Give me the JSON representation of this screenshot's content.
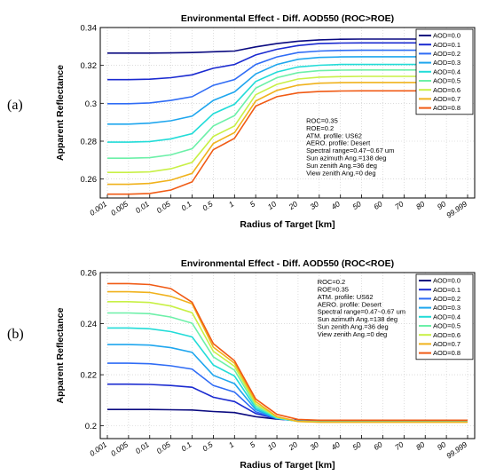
{
  "panel_labels": [
    "(a)",
    "(b)"
  ],
  "chart_data": [
    {
      "type": "line",
      "title": "Environmental Effect - Diff. AOD550 (ROC>ROE)",
      "xlabel": "Radius of Target [km]",
      "ylabel": "Apparent Reflectance",
      "categories": [
        "0.001",
        "0.005",
        "0.01",
        "0.05",
        "0.1",
        "0.5",
        "1",
        "5",
        "10",
        "20",
        "30",
        "40",
        "50",
        "60",
        "70",
        "80",
        "90",
        "99.999"
      ],
      "ylim": [
        0.25,
        0.34
      ],
      "yticks": [
        0.26,
        0.28,
        0.3,
        0.32,
        0.34
      ],
      "ytick_labels": [
        "0.26",
        "0.28",
        "0.3",
        "0.32",
        "0.34"
      ],
      "legend_position": "top-right",
      "annotations": [
        "ROC=0.35",
        "ROE=0.2",
        "ATM. profile: US62",
        "AERO. profile: Desert",
        "Spectral range=0.47~0.67 um",
        "Sun azimuth Ang.=138 deg",
        "Sun zenith Ang.=36 deg",
        "View zenith Ang.=0 deg"
      ],
      "series": [
        {
          "name": "AOD=0.0",
          "color": "#0a0a80",
          "values": [
            0.3265,
            0.3265,
            0.3265,
            0.3266,
            0.3268,
            0.3272,
            0.3276,
            0.3298,
            0.3315,
            0.3328,
            0.3335,
            0.3338,
            0.3339,
            0.3339,
            0.3339,
            0.3339,
            0.3339,
            0.3339
          ]
        },
        {
          "name": "AOD=0.1",
          "color": "#1a2ad0",
          "values": [
            0.3125,
            0.3125,
            0.3127,
            0.3135,
            0.315,
            0.3185,
            0.3205,
            0.3255,
            0.3285,
            0.3305,
            0.3315,
            0.3318,
            0.3319,
            0.3319,
            0.3319,
            0.3319,
            0.3319,
            0.3319
          ]
        },
        {
          "name": "AOD=0.2",
          "color": "#2f6cf5",
          "values": [
            0.2998,
            0.2998,
            0.3002,
            0.3015,
            0.3035,
            0.3095,
            0.3125,
            0.3205,
            0.3245,
            0.3268,
            0.3276,
            0.3279,
            0.328,
            0.328,
            0.328,
            0.328,
            0.328,
            0.328
          ]
        },
        {
          "name": "AOD=0.3",
          "color": "#1fa6ee",
          "values": [
            0.289,
            0.289,
            0.2895,
            0.2908,
            0.2932,
            0.3015,
            0.306,
            0.3155,
            0.3205,
            0.3232,
            0.3242,
            0.3245,
            0.3246,
            0.3246,
            0.3246,
            0.3246,
            0.3246,
            0.3246
          ]
        },
        {
          "name": "AOD=0.4",
          "color": "#22dcd8",
          "values": [
            0.2795,
            0.2795,
            0.2798,
            0.2812,
            0.284,
            0.2945,
            0.2995,
            0.3115,
            0.3165,
            0.3192,
            0.3201,
            0.3205,
            0.3205,
            0.3205,
            0.3205,
            0.3205,
            0.3205,
            0.3205
          ]
        },
        {
          "name": "AOD=0.5",
          "color": "#6cf0a8",
          "values": [
            0.271,
            0.271,
            0.2713,
            0.2728,
            0.276,
            0.288,
            0.2935,
            0.308,
            0.3135,
            0.3162,
            0.3172,
            0.3175,
            0.3176,
            0.3176,
            0.3176,
            0.3176,
            0.3176,
            0.3176
          ]
        },
        {
          "name": "AOD=0.6",
          "color": "#c8f046",
          "values": [
            0.2635,
            0.2635,
            0.2638,
            0.2654,
            0.2688,
            0.2825,
            0.288,
            0.3045,
            0.31,
            0.3128,
            0.3138,
            0.3141,
            0.3142,
            0.3142,
            0.3142,
            0.3142,
            0.3142,
            0.3142
          ]
        },
        {
          "name": "AOD=0.7",
          "color": "#f0b21c",
          "values": [
            0.2572,
            0.2572,
            0.2577,
            0.2594,
            0.263,
            0.2788,
            0.2845,
            0.3012,
            0.3068,
            0.3096,
            0.3106,
            0.3109,
            0.311,
            0.311,
            0.311,
            0.311,
            0.311,
            0.311
          ]
        },
        {
          "name": "AOD=0.8",
          "color": "#f05a14",
          "values": [
            0.252,
            0.252,
            0.2524,
            0.2542,
            0.2585,
            0.2755,
            0.2815,
            0.2985,
            0.3035,
            0.3055,
            0.3062,
            0.3065,
            0.3066,
            0.3066,
            0.3066,
            0.3066,
            0.3066,
            0.3066
          ]
        }
      ]
    },
    {
      "type": "line",
      "title": "Environmental Effect - Diff. AOD550 (ROC<ROE)",
      "xlabel": "Radius of Target [km]",
      "ylabel": "Apparent Reflectance",
      "categories": [
        "0.001",
        "0.005",
        "0.01",
        "0.05",
        "0.1",
        "0.5",
        "1",
        "5",
        "10",
        "20",
        "30",
        "40",
        "50",
        "60",
        "70",
        "80",
        "90",
        "99.999"
      ],
      "ylim": [
        0.195,
        0.26
      ],
      "yticks": [
        0.2,
        0.22,
        0.24,
        0.26
      ],
      "ytick_labels": [
        "0.2",
        "0.22",
        "0.24",
        "0.26"
      ],
      "legend_position": "top-right",
      "annotations": [
        "ROC=0.2",
        "ROE=0.35",
        "ATM. profile: US62",
        "AERO. profile: Desert",
        "Spectral range=0.47~0.67 um",
        "Sun azimuth Ang.=138 deg",
        "Sun zenith Ang.=36 deg",
        "View zenith Ang.=0 deg"
      ],
      "series": [
        {
          "name": "AOD=0.0",
          "color": "#0a0a80",
          "values": [
            0.2064,
            0.2064,
            0.2064,
            0.2063,
            0.2062,
            0.2056,
            0.2052,
            0.2036,
            0.2026,
            0.2021,
            0.2019,
            0.2019,
            0.2019,
            0.2019,
            0.2019,
            0.2019,
            0.2019,
            0.2019
          ]
        },
        {
          "name": "AOD=0.1",
          "color": "#1a2ad0",
          "values": [
            0.2163,
            0.2163,
            0.2162,
            0.2158,
            0.2151,
            0.2112,
            0.2095,
            0.2048,
            0.2028,
            0.202,
            0.2018,
            0.2018,
            0.2018,
            0.2018,
            0.2018,
            0.2018,
            0.2018,
            0.2018
          ]
        },
        {
          "name": "AOD=0.2",
          "color": "#2f6cf5",
          "values": [
            0.2245,
            0.2245,
            0.2243,
            0.2235,
            0.2222,
            0.2158,
            0.2132,
            0.2055,
            0.2028,
            0.2019,
            0.2017,
            0.2017,
            0.2017,
            0.2017,
            0.2017,
            0.2017,
            0.2017,
            0.2017
          ]
        },
        {
          "name": "AOD=0.3",
          "color": "#1fa6ee",
          "values": [
            0.2318,
            0.2318,
            0.2316,
            0.2306,
            0.2288,
            0.2198,
            0.2165,
            0.2063,
            0.2029,
            0.2018,
            0.2016,
            0.2016,
            0.2016,
            0.2016,
            0.2016,
            0.2016,
            0.2016,
            0.2016
          ]
        },
        {
          "name": "AOD=0.4",
          "color": "#22dcd8",
          "values": [
            0.2383,
            0.2383,
            0.238,
            0.2369,
            0.2348,
            0.2238,
            0.2195,
            0.207,
            0.203,
            0.2018,
            0.2016,
            0.2016,
            0.2016,
            0.2016,
            0.2016,
            0.2016,
            0.2016,
            0.2016
          ]
        },
        {
          "name": "AOD=0.5",
          "color": "#6cf0a8",
          "values": [
            0.2442,
            0.2442,
            0.2439,
            0.2426,
            0.2402,
            0.227,
            0.2218,
            0.2078,
            0.2032,
            0.2018,
            0.2015,
            0.2015,
            0.2015,
            0.2015,
            0.2015,
            0.2015,
            0.2015,
            0.2015
          ]
        },
        {
          "name": "AOD=0.6",
          "color": "#c8f046",
          "values": [
            0.2486,
            0.2486,
            0.2483,
            0.2469,
            0.2443,
            0.2292,
            0.2233,
            0.2086,
            0.2034,
            0.2017,
            0.2015,
            0.2015,
            0.2015,
            0.2015,
            0.2015,
            0.2015,
            0.2015,
            0.2015
          ]
        },
        {
          "name": "AOD=0.7",
          "color": "#f0b21c",
          "values": [
            0.2525,
            0.2525,
            0.2522,
            0.2507,
            0.2478,
            0.2308,
            0.2245,
            0.2095,
            0.2036,
            0.2017,
            0.2014,
            0.2014,
            0.2014,
            0.2014,
            0.2014,
            0.2014,
            0.2014,
            0.2014
          ]
        },
        {
          "name": "AOD=0.8",
          "color": "#f05a14",
          "values": [
            0.2557,
            0.2557,
            0.2553,
            0.2537,
            0.2484,
            0.2322,
            0.2255,
            0.2105,
            0.2045,
            0.2025,
            0.2022,
            0.2022,
            0.2022,
            0.2022,
            0.2022,
            0.2022,
            0.2022,
            0.2022
          ]
        }
      ]
    }
  ]
}
